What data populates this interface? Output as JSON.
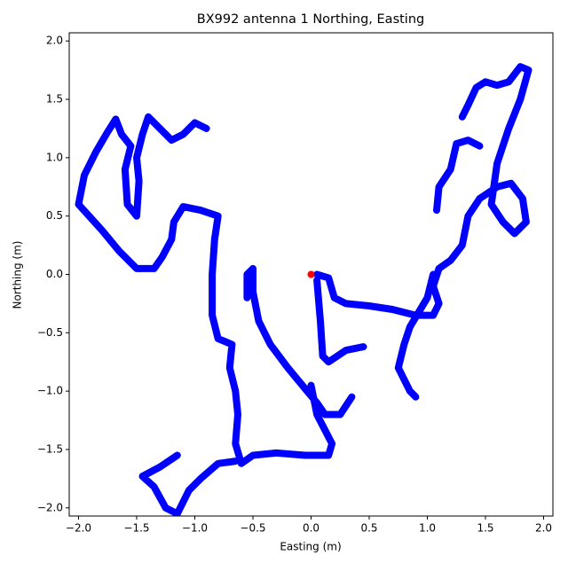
{
  "chart_data": {
    "type": "line",
    "title": "BX992 antenna 1 Northing, Easting",
    "xlabel": "Easting (m)",
    "ylabel": "Northing (m)",
    "xlim": [
      -2.08,
      2.08
    ],
    "ylim": [
      -2.07,
      2.07
    ],
    "xticks": [
      {
        "value": -2,
        "label": "−2.0"
      },
      {
        "value": -1.5,
        "label": "−1.5"
      },
      {
        "value": -1,
        "label": "−1.0"
      },
      {
        "value": -0.5,
        "label": "−0.5"
      },
      {
        "value": 0,
        "label": "0.0"
      },
      {
        "value": 0.5,
        "label": "0.5"
      },
      {
        "value": 1,
        "label": "1.0"
      },
      {
        "value": 1.5,
        "label": "1.5"
      },
      {
        "value": 2,
        "label": "2.0"
      }
    ],
    "yticks": [
      {
        "value": -2,
        "label": "−2.0"
      },
      {
        "value": -1.5,
        "label": "−1.5"
      },
      {
        "value": -1,
        "label": "−1.0"
      },
      {
        "value": -0.5,
        "label": "−0.5"
      },
      {
        "value": 0,
        "label": "0.0"
      },
      {
        "value": 0.5,
        "label": "0.5"
      },
      {
        "value": 1,
        "label": "1.0"
      },
      {
        "value": 1.5,
        "label": "1.5"
      },
      {
        "value": 2,
        "label": "2.0"
      }
    ],
    "series": [
      {
        "color": "#0000ff",
        "x": [
          0.05,
          0.15,
          0.2,
          0.3,
          0.5,
          0.7,
          0.9,
          1.05,
          1.1,
          1.05,
          1.1,
          1.2,
          1.3,
          1.35,
          1.45,
          1.6,
          1.72,
          1.82,
          1.85,
          1.75,
          1.65,
          1.55,
          1.6,
          1.7,
          1.8,
          1.87,
          1.8,
          1.7,
          1.6,
          1.5,
          1.42,
          1.35,
          1.3,
          null,
          1.45,
          1.35,
          1.25,
          1.2,
          1.1,
          1.08,
          null,
          1.05,
          1.0,
          0.85,
          0.8,
          0.75,
          0.85,
          0.9,
          null,
          0.05,
          0.08,
          0.1,
          0.15,
          0.3,
          0.45,
          null,
          0.35,
          0.25,
          0.12,
          0.05,
          -0.05,
          -0.2,
          -0.35,
          -0.45,
          -0.5,
          -0.5,
          -0.55,
          -0.55,
          null,
          0.0,
          0.05,
          0.18,
          0.15,
          -0.05,
          -0.3,
          -0.5,
          -0.6,
          -0.65,
          -0.63,
          -0.65,
          -0.7,
          -0.68,
          -0.8,
          -0.85,
          -0.85,
          -0.83,
          -0.8,
          -0.95,
          -1.1,
          -1.18,
          -1.2,
          -1.28,
          -1.35,
          -1.5,
          -1.65,
          -1.8,
          -2.0,
          -1.95,
          -1.85,
          -1.75,
          -1.68,
          -1.63,
          -1.55,
          -1.6,
          -1.58,
          -1.5,
          -1.48,
          -1.5,
          -1.45,
          -1.4,
          -1.3,
          -1.2,
          -1.1,
          -1.0,
          -0.9,
          null,
          -0.65,
          -0.8,
          -0.95,
          -1.05,
          -1.15,
          -1.25,
          -1.35,
          -1.45,
          -1.3,
          -1.15
        ],
        "values": [
          0.0,
          -0.03,
          -0.2,
          -0.25,
          -0.27,
          -0.3,
          -0.35,
          -0.35,
          -0.25,
          -0.1,
          0.05,
          0.12,
          0.25,
          0.5,
          0.65,
          0.75,
          0.78,
          0.65,
          0.45,
          0.35,
          0.45,
          0.6,
          0.95,
          1.25,
          1.5,
          1.75,
          1.78,
          1.65,
          1.62,
          1.65,
          1.6,
          1.45,
          1.35,
          null,
          1.1,
          1.15,
          1.12,
          0.9,
          0.75,
          0.55,
          null,
          0.0,
          -0.2,
          -0.45,
          -0.6,
          -0.8,
          -1.0,
          -1.05,
          null,
          -0.05,
          -0.4,
          -0.7,
          -0.75,
          -0.65,
          -0.62,
          null,
          -1.05,
          -1.2,
          -1.2,
          -1.1,
          -0.98,
          -0.8,
          -0.6,
          -0.4,
          -0.15,
          0.05,
          0.0,
          -0.2,
          null,
          -0.95,
          -1.2,
          -1.45,
          -1.55,
          -1.55,
          -1.53,
          -1.55,
          -1.62,
          -1.45,
          -1.2,
          -1.0,
          -0.8,
          -0.6,
          -0.55,
          -0.35,
          0.0,
          0.3,
          0.5,
          0.55,
          0.58,
          0.45,
          0.3,
          0.15,
          0.05,
          0.05,
          0.2,
          0.38,
          0.6,
          0.85,
          1.05,
          1.22,
          1.33,
          1.2,
          1.1,
          0.9,
          0.6,
          0.5,
          0.8,
          1.0,
          1.2,
          1.35,
          1.25,
          1.15,
          1.2,
          1.3,
          1.25,
          null,
          -1.6,
          -1.62,
          -1.75,
          -1.85,
          -2.05,
          -2.0,
          -1.82,
          -1.73,
          -1.65,
          -1.55
        ]
      },
      {
        "color": "#ff0000",
        "x": [
          0
        ],
        "values": [
          0
        ]
      }
    ]
  }
}
